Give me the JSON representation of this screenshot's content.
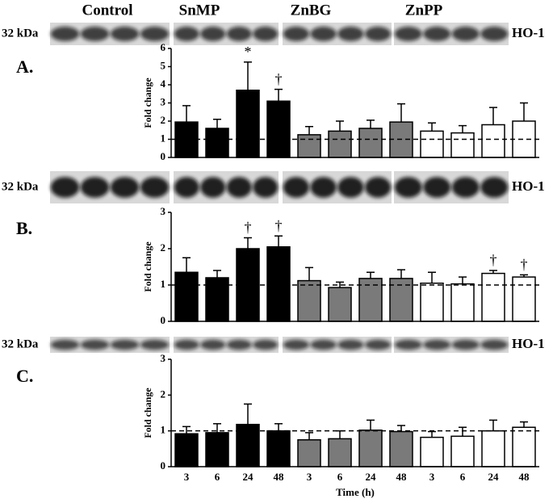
{
  "groups": [
    "Control",
    "SnMP",
    "ZnBG",
    "ZnPP"
  ],
  "chart_data": [
    {
      "type": "bar",
      "label": "A.",
      "ylabel": "Fold change",
      "marker_size": "32 kDa",
      "band": "HO-1",
      "ylim": [
        0,
        6
      ],
      "yticks": [
        0,
        1,
        2,
        3,
        4,
        5,
        6
      ],
      "reference_line": 1,
      "values": [
        1.95,
        1.6,
        3.7,
        3.1,
        1.25,
        1.45,
        1.6,
        1.95,
        1.45,
        1.35,
        1.8,
        2.0
      ],
      "errors": [
        0.9,
        0.5,
        1.55,
        0.65,
        0.45,
        0.55,
        0.45,
        1.0,
        0.45,
        0.4,
        0.95,
        1.0
      ],
      "markers": [
        null,
        null,
        "*",
        "†",
        null,
        null,
        null,
        null,
        null,
        null,
        null,
        null
      ],
      "colors": [
        "#000000",
        "#000000",
        "#000000",
        "#000000",
        "#7a7a7a",
        "#7a7a7a",
        "#7a7a7a",
        "#7a7a7a",
        "#ffffff",
        "#ffffff",
        "#ffffff",
        "#ffffff"
      ]
    },
    {
      "type": "bar",
      "label": "B.",
      "ylabel": "Fold change",
      "marker_size": "32 kDa",
      "band": "HO-1",
      "ylim": [
        0,
        3
      ],
      "yticks": [
        0,
        1,
        2,
        3
      ],
      "reference_line": 1,
      "values": [
        1.35,
        1.2,
        2.0,
        2.05,
        1.12,
        0.93,
        1.18,
        1.18,
        1.05,
        1.03,
        1.32,
        1.22
      ],
      "errors": [
        0.4,
        0.2,
        0.3,
        0.3,
        0.36,
        0.15,
        0.17,
        0.24,
        0.3,
        0.19,
        0.08,
        0.06
      ],
      "markers": [
        null,
        null,
        "†",
        "†",
        null,
        null,
        null,
        null,
        null,
        null,
        "†",
        "†"
      ],
      "colors": [
        "#000000",
        "#000000",
        "#000000",
        "#000000",
        "#7a7a7a",
        "#7a7a7a",
        "#7a7a7a",
        "#7a7a7a",
        "#ffffff",
        "#ffffff",
        "#ffffff",
        "#ffffff"
      ]
    },
    {
      "type": "bar",
      "label": "C.",
      "ylabel": "Fold change",
      "marker_size": "32 kDa",
      "band": "HO-1",
      "xlabel": "Time (h)",
      "categories": [
        "3",
        "6",
        "24",
        "48",
        "3",
        "6",
        "24",
        "48",
        "3",
        "6",
        "24",
        "48"
      ],
      "ylim": [
        0,
        3
      ],
      "yticks": [
        0,
        1,
        2,
        3
      ],
      "reference_line": 1,
      "values": [
        0.92,
        0.95,
        1.18,
        1.0,
        0.75,
        0.78,
        1.02,
        0.98,
        0.82,
        0.85,
        1.0,
        1.1
      ],
      "errors": [
        0.2,
        0.25,
        0.57,
        0.2,
        0.2,
        0.22,
        0.28,
        0.17,
        0.16,
        0.25,
        0.3,
        0.15
      ],
      "markers": [
        null,
        null,
        null,
        null,
        null,
        null,
        null,
        null,
        null,
        null,
        null,
        null
      ],
      "colors": [
        "#000000",
        "#000000",
        "#000000",
        "#000000",
        "#7a7a7a",
        "#7a7a7a",
        "#7a7a7a",
        "#7a7a7a",
        "#ffffff",
        "#ffffff",
        "#ffffff",
        "#ffffff"
      ]
    }
  ]
}
